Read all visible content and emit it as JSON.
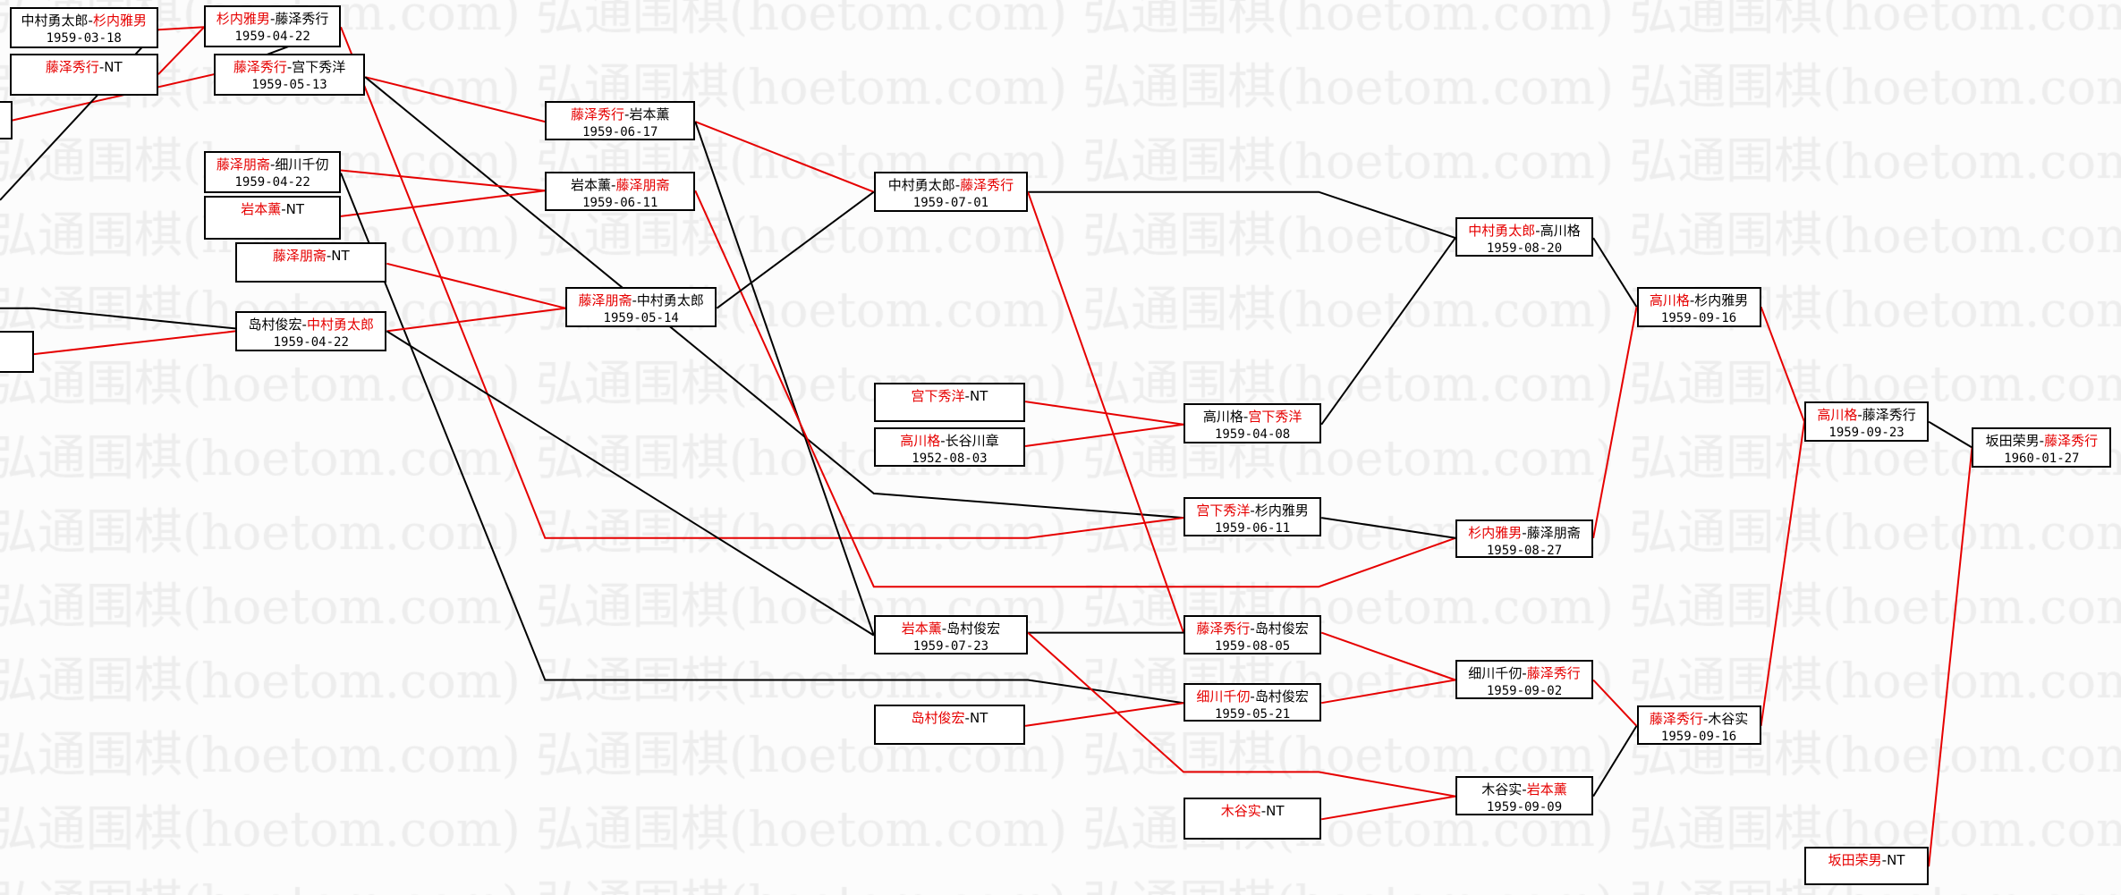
{
  "watermark": "弘通围棋(hoetom.com)",
  "colors": {
    "winner": "#e60000",
    "loser_line": "#000000",
    "winner_line": "#e60000",
    "watermark": "#ededed"
  },
  "separator": "-",
  "matches": [
    {
      "id": "A",
      "p1": "中村勇太郎",
      "p2": "杉内雅男",
      "red": 2,
      "date": "1959-03-18"
    },
    {
      "id": "B",
      "p1": "藤泽秀行",
      "p2": "NT",
      "red": 1,
      "date": ""
    },
    {
      "id": "D",
      "p1": "杉内雅男",
      "p2": "藤泽秀行",
      "red": 1,
      "date": "1959-04-22"
    },
    {
      "id": "E",
      "p1": "藤泽秀行",
      "p2": "宫下秀洋",
      "red": 1,
      "date": "1959-05-13"
    },
    {
      "id": "F",
      "p1": "藤泽朋斋",
      "p2": "细川千仞",
      "red": 1,
      "date": "1959-04-22"
    },
    {
      "id": "G",
      "p1": "岩本薰",
      "p2": "NT",
      "red": 1,
      "date": ""
    },
    {
      "id": "H",
      "p1": "藤泽朋斋",
      "p2": "NT",
      "red": 1,
      "date": ""
    },
    {
      "id": "J",
      "p1": "岛村俊宏",
      "p2": "中村勇太郎",
      "red": 2,
      "date": "1959-04-22"
    },
    {
      "id": "K",
      "p1": "藤泽秀行",
      "p2": "岩本薰",
      "red": 1,
      "date": "1959-06-17"
    },
    {
      "id": "L",
      "p1": "岩本薰",
      "p2": "藤泽朋斋",
      "red": 2,
      "date": "1959-06-11"
    },
    {
      "id": "M",
      "p1": "藤泽朋斋",
      "p2": "中村勇太郎",
      "red": 1,
      "date": "1959-05-14"
    },
    {
      "id": "N",
      "p1": "中村勇太郎",
      "p2": "藤泽秀行",
      "red": 2,
      "date": "1959-07-01"
    },
    {
      "id": "O",
      "p1": "宫下秀洋",
      "p2": "NT",
      "red": 1,
      "date": ""
    },
    {
      "id": "P",
      "p1": "高川格",
      "p2": "长谷川章",
      "red": 1,
      "date": "1952-08-03"
    },
    {
      "id": "Q",
      "p1": "岩本薰",
      "p2": "岛村俊宏",
      "red": 1,
      "date": "1959-07-23"
    },
    {
      "id": "R",
      "p1": "岛村俊宏",
      "p2": "NT",
      "red": 1,
      "date": ""
    },
    {
      "id": "S",
      "p1": "高川格",
      "p2": "宫下秀洋",
      "red": 2,
      "date": "1959-04-08"
    },
    {
      "id": "T",
      "p1": "宫下秀洋",
      "p2": "杉内雅男",
      "red": 1,
      "date": "1959-06-11"
    },
    {
      "id": "U",
      "p1": "藤泽秀行",
      "p2": "岛村俊宏",
      "red": 1,
      "date": "1959-08-05"
    },
    {
      "id": "V",
      "p1": "细川千仞",
      "p2": "岛村俊宏",
      "red": 1,
      "date": "1959-05-21"
    },
    {
      "id": "W",
      "p1": "木谷实",
      "p2": "NT",
      "red": 1,
      "date": ""
    },
    {
      "id": "X",
      "p1": "中村勇太郎",
      "p2": "高川格",
      "red": 1,
      "date": "1959-08-20"
    },
    {
      "id": "Y",
      "p1": "杉内雅男",
      "p2": "藤泽朋斋",
      "red": 1,
      "date": "1959-08-27"
    },
    {
      "id": "Z",
      "p1": "细川千仞",
      "p2": "藤泽秀行",
      "red": 2,
      "date": "1959-09-02"
    },
    {
      "id": "AA",
      "p1": "木谷实",
      "p2": "岩本薰",
      "red": 2,
      "date": "1959-09-09"
    },
    {
      "id": "AB",
      "p1": "高川格",
      "p2": "杉内雅男",
      "red": 1,
      "date": "1959-09-16"
    },
    {
      "id": "AC",
      "p1": "藤泽秀行",
      "p2": "木谷实",
      "red": 1,
      "date": "1959-09-16"
    },
    {
      "id": "AD",
      "p1": "高川格",
      "p2": "藤泽秀行",
      "red": 1,
      "date": "1959-09-23"
    },
    {
      "id": "AE",
      "p1": "坂田荣男",
      "p2": "NT",
      "red": 1,
      "date": ""
    },
    {
      "id": "AF",
      "p1": "坂田荣男",
      "p2": "藤泽秀行",
      "red": 2,
      "date": "1960-01-27"
    }
  ]
}
